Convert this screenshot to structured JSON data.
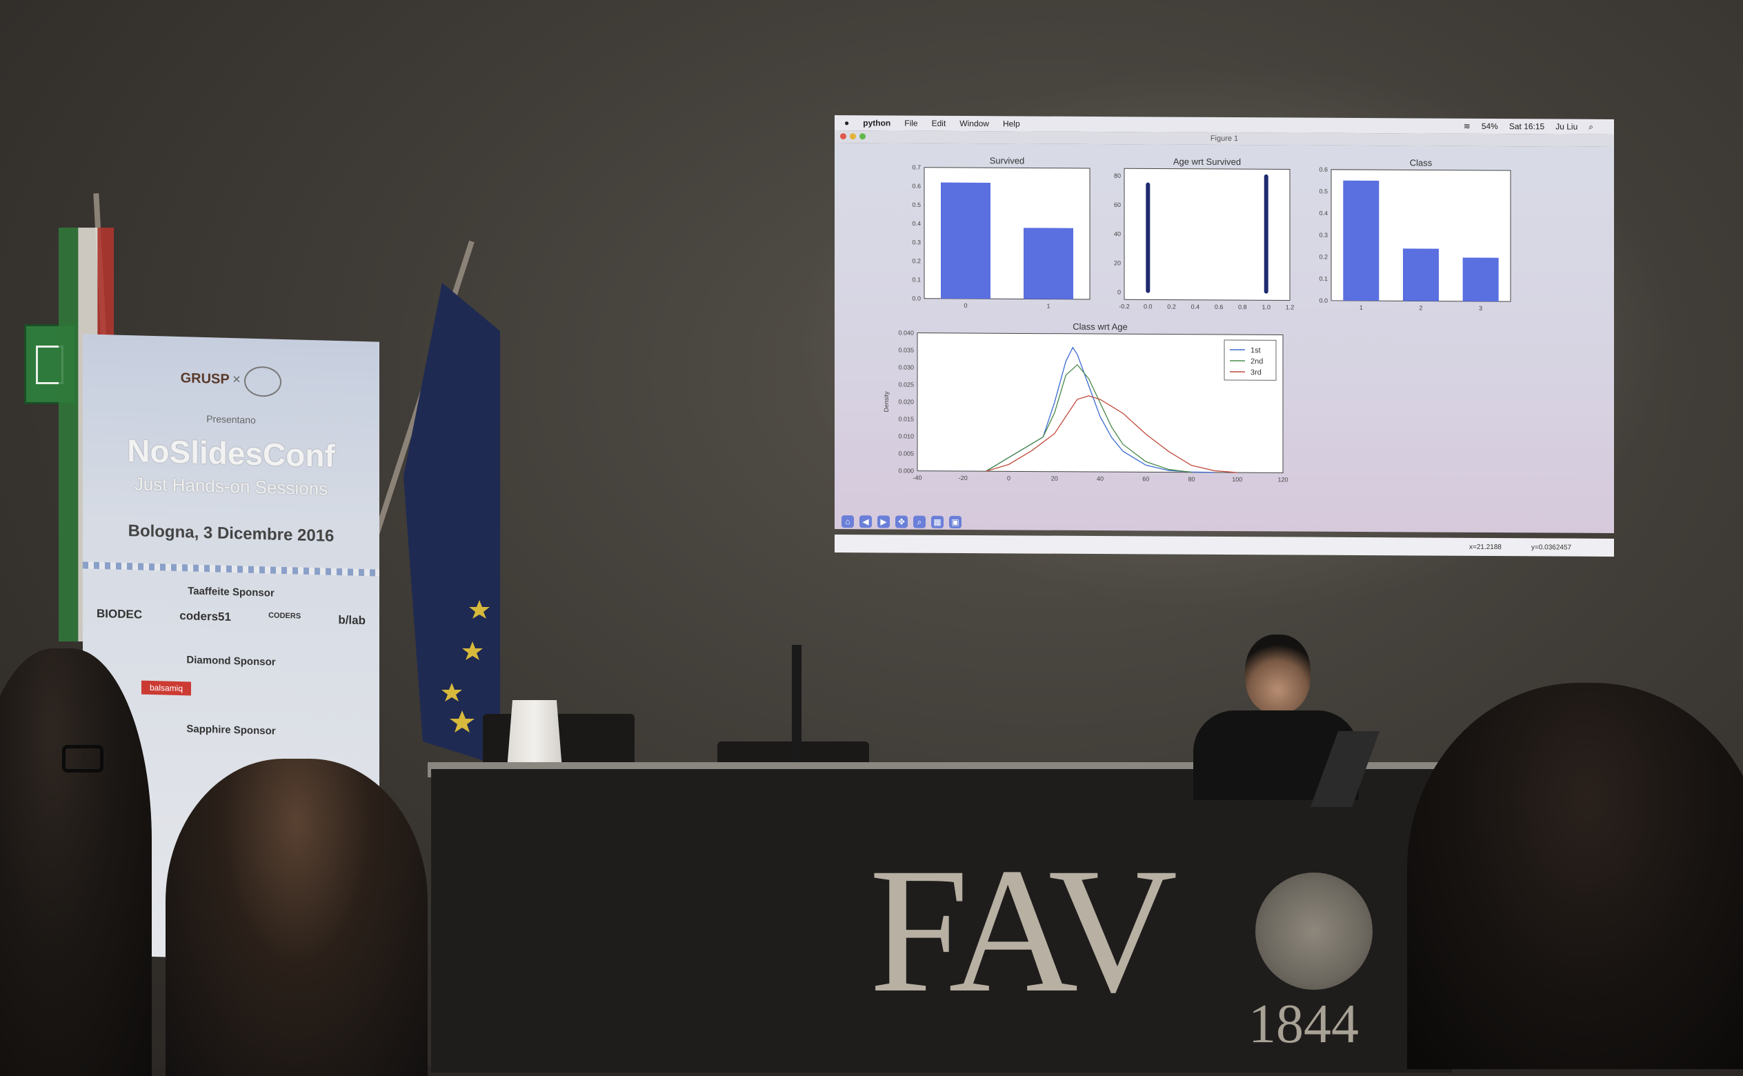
{
  "screen": {
    "menu": {
      "apple": "",
      "app": "python",
      "items": [
        "File",
        "Edit",
        "Window",
        "Help"
      ],
      "battery": "54%",
      "clock": "Sat 16:15",
      "user": "Ju Liu"
    },
    "window_title": "Figure 1",
    "status": {
      "x": "x=21.2188",
      "y": "y=0.0362457"
    },
    "toolbar_icons": [
      "home-icon",
      "back-icon",
      "forward-icon",
      "pan-icon",
      "zoom-icon",
      "configure-icon",
      "save-icon"
    ]
  },
  "chart_data": [
    {
      "type": "bar",
      "title": "Survived",
      "categories": [
        "0",
        "1"
      ],
      "values": [
        0.62,
        0.38
      ],
      "ylim": [
        0,
        0.7
      ],
      "yticks": [
        "0.0",
        "0.1",
        "0.2",
        "0.3",
        "0.4",
        "0.5",
        "0.6",
        "0.7"
      ],
      "color": "#5a6fe0"
    },
    {
      "type": "scatter",
      "title": "Age wrt Survived",
      "x": [
        0,
        1
      ],
      "y_range_per_x": [
        [
          1,
          74
        ],
        [
          1,
          80
        ]
      ],
      "xlim": [
        -0.2,
        1.2
      ],
      "ylim": [
        -5,
        85
      ],
      "xticks": [
        "-0.2",
        "0.0",
        "0.2",
        "0.4",
        "0.6",
        "0.8",
        "1.0",
        "1.2"
      ],
      "yticks": [
        "0",
        "20",
        "40",
        "60",
        "80"
      ],
      "color": "#1f2a6e"
    },
    {
      "type": "bar",
      "title": "Class",
      "categories": [
        "1",
        "2",
        "3"
      ],
      "values": [
        0.55,
        0.24,
        0.2
      ],
      "ylim": [
        0,
        0.6
      ],
      "yticks": [
        "0.0",
        "0.1",
        "0.2",
        "0.3",
        "0.4",
        "0.5",
        "0.6"
      ],
      "color": "#5a6fe0"
    },
    {
      "type": "line",
      "title": "Class wrt Age",
      "ylabel": "Density",
      "xlim": [
        -40,
        120
      ],
      "ylim": [
        0,
        0.04
      ],
      "xticks": [
        "-40",
        "-20",
        "0",
        "20",
        "40",
        "60",
        "80",
        "100",
        "120"
      ],
      "yticks": [
        "0.000",
        "0.005",
        "0.010",
        "0.015",
        "0.020",
        "0.025",
        "0.030",
        "0.035",
        "0.040"
      ],
      "legend_position": "top-right",
      "series": [
        {
          "name": "1st",
          "color": "#3b6ad0",
          "x": [
            -10,
            0,
            10,
            15,
            20,
            25,
            28,
            30,
            35,
            40,
            45,
            50,
            60,
            70,
            80,
            90
          ],
          "y": [
            0.0,
            0.004,
            0.008,
            0.01,
            0.02,
            0.032,
            0.036,
            0.034,
            0.025,
            0.016,
            0.01,
            0.006,
            0.002,
            0.0005,
            0.0001,
            0.0
          ]
        },
        {
          "name": "2nd",
          "color": "#4a8a4a",
          "x": [
            -10,
            0,
            10,
            15,
            20,
            25,
            30,
            35,
            40,
            45,
            50,
            60,
            70,
            80
          ],
          "y": [
            0.0,
            0.004,
            0.008,
            0.01,
            0.017,
            0.028,
            0.031,
            0.027,
            0.02,
            0.013,
            0.008,
            0.003,
            0.0008,
            0.0
          ]
        },
        {
          "name": "3rd",
          "color": "#c04a3a",
          "x": [
            -10,
            0,
            10,
            20,
            25,
            30,
            35,
            40,
            45,
            50,
            60,
            70,
            80,
            90,
            100
          ],
          "y": [
            0.0,
            0.002,
            0.006,
            0.011,
            0.016,
            0.021,
            0.022,
            0.021,
            0.019,
            0.017,
            0.011,
            0.006,
            0.002,
            0.0005,
            0.0
          ]
        }
      ]
    }
  ],
  "banner": {
    "logo_left": "GRUSP",
    "logo_right": "",
    "presentano": "Presentano",
    "title": "NoSlidesConf",
    "subtitle": "Just Hands-on Sessions",
    "date": "Bologna, 3 Dicembre 2016",
    "sections": [
      {
        "heading": "Taaffeite Sponsor",
        "sponsors": [
          "BIODEC",
          "coders51",
          "CODERS",
          "b/lab"
        ]
      },
      {
        "heading": "Diamond Sponsor",
        "sponsors": [
          "balsamiq",
          ""
        ]
      },
      {
        "heading": "Sapphire Sponsor",
        "sponsors": [
          "",
          "",
          ""
        ]
      }
    ]
  },
  "table_logo": {
    "text": "FAV",
    "year": "1844"
  }
}
